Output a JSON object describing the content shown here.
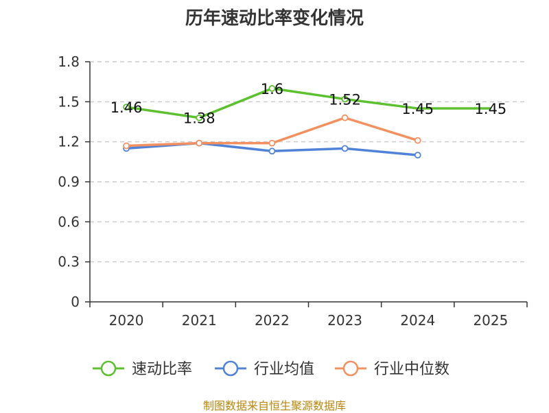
{
  "chart_data": {
    "type": "line",
    "title": "历年速动比率变化情况",
    "categories": [
      "2020",
      "2021",
      "2022",
      "2023",
      "2024",
      "2025"
    ],
    "ylim": [
      0,
      1.8
    ],
    "yticks": [
      "0",
      "0.3",
      "0.6",
      "0.9",
      "1.2",
      "1.5",
      "1.8"
    ],
    "ytick_values": [
      0,
      0.3,
      0.6,
      0.9,
      1.2,
      1.5,
      1.8
    ],
    "grid": true,
    "legend_position": "bottom",
    "series": [
      {
        "name": "速动比率",
        "color": "#5cc02f",
        "values": [
          1.46,
          1.38,
          1.6,
          1.52,
          1.45,
          1.45
        ],
        "labels": [
          "1.46",
          "1.38",
          "1.6",
          "1.52",
          "1.45",
          "1.45"
        ],
        "markers": [
          true,
          true,
          true,
          true,
          false,
          false
        ]
      },
      {
        "name": "行业均值",
        "color": "#5083d8",
        "values": [
          1.15,
          1.19,
          1.13,
          1.15,
          1.1,
          null
        ]
      },
      {
        "name": "行业中位数",
        "color": "#f39060",
        "values": [
          1.17,
          1.19,
          1.19,
          1.38,
          1.21,
          null
        ]
      }
    ],
    "source": "制图数据来自恒生聚源数据库"
  }
}
